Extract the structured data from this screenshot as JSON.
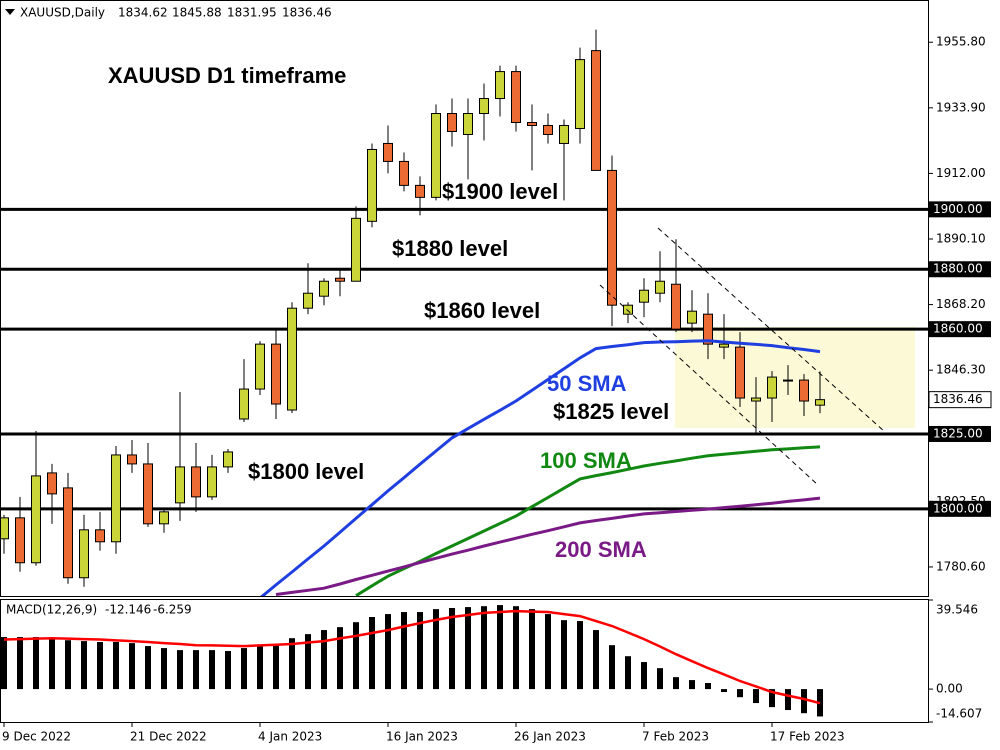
{
  "chart_data": [
    {
      "type": "candlestick",
      "symbol": "XAUUSD,Daily",
      "title": "XAUUSD D1 timeframe",
      "categories": [
        "9 Dec 2022",
        null,
        null,
        null,
        null,
        null,
        null,
        null,
        "21 Dec 2022",
        null,
        null,
        null,
        null,
        null,
        null,
        null,
        "4 Jan 2023",
        null,
        null,
        null,
        null,
        null,
        null,
        null,
        "16 Jan 2023",
        null,
        null,
        null,
        null,
        null,
        null,
        null,
        "26 Jan 2023",
        null,
        null,
        null,
        null,
        null,
        null,
        null,
        "7 Feb 2023",
        null,
        null,
        null,
        null,
        null,
        null,
        null,
        "17 Feb 2023",
        null,
        null,
        null
      ],
      "open": [
        1790,
        1797,
        1782,
        1812,
        1807,
        1777,
        1793,
        1789,
        1818,
        1815,
        1795,
        1802,
        1814,
        1804,
        1814,
        1830,
        1840,
        1855,
        1833,
        1867,
        1871,
        1877,
        1876,
        1896,
        1922,
        1916,
        1908,
        1904,
        1932,
        1925,
        1932,
        1937,
        1946,
        1929,
        1928,
        1922,
        1927,
        1953,
        1913,
        1865,
        1869,
        1872,
        1875,
        1862,
        1865,
        1854,
        1854,
        1836,
        1837,
        1843,
        1843,
        1834.62
      ],
      "high": [
        1798,
        1804,
        1826,
        1815,
        1812,
        1798,
        1799,
        1821,
        1823,
        1822,
        1800,
        1839,
        1822,
        1818,
        1820,
        1850,
        1856,
        1860,
        1869,
        1882,
        1877,
        1880,
        1901,
        1922,
        1928,
        1919,
        1911,
        1935,
        1937,
        1937,
        1942,
        1948,
        1948,
        1935,
        1932,
        1930,
        1954,
        1960,
        1918,
        1869,
        1877,
        1886,
        1890,
        1873,
        1872,
        1865,
        1859,
        1844,
        1846,
        1848,
        1845,
        1845.88
      ],
      "low": [
        1785,
        1779,
        1781,
        1795,
        1775,
        1774,
        1786,
        1785,
        1812,
        1794,
        1792,
        1796,
        1799,
        1803,
        1812,
        1829,
        1838,
        1830,
        1832,
        1865,
        1868,
        1871,
        1876,
        1894,
        1912,
        1906,
        1898,
        1903,
        1921,
        1910,
        1923,
        1931,
        1926,
        1913,
        1922,
        1903,
        1922,
        1913,
        1861,
        1862,
        1864,
        1869,
        1859,
        1859,
        1850,
        1850,
        1834,
        1825,
        1829,
        1838,
        1831,
        1831.95
      ],
      "close": [
        1797,
        1782,
        1811,
        1805,
        1777,
        1793,
        1789,
        1818,
        1815,
        1795,
        1799,
        1814,
        1804,
        1814,
        1819,
        1840,
        1855,
        1835,
        1867,
        1872,
        1876,
        1876,
        1897,
        1920,
        1916,
        1908,
        1904,
        1932,
        1926,
        1932,
        1937,
        1946,
        1929,
        1928,
        1925,
        1928,
        1950,
        1913,
        1868,
        1868,
        1873,
        1876,
        1860,
        1866,
        1855,
        1855,
        1837,
        1837,
        1844,
        1843,
        1836,
        1836.46
      ],
      "up_color": "#cad53a",
      "down_color": "#ec6b35",
      "lines": [
        {
          "name": "50 SMA",
          "color": "#1f3fe0",
          "values": [
            null,
            null,
            null,
            null,
            null,
            null,
            null,
            null,
            null,
            null,
            null,
            null,
            null,
            null,
            null,
            null,
            1770.2,
            1774.6,
            1778.9,
            1783.3,
            1787.6,
            1792.2,
            1796.8,
            1801.4,
            1806.0,
            1810.4,
            1814.9,
            1819.3,
            1823.7,
            1826.8,
            1829.9,
            1832.9,
            1836.0,
            1839.6,
            1843.2,
            1846.8,
            1850.4,
            1853.5,
            1854.2,
            1854.8,
            1855.5,
            1855.7,
            1855.8,
            1856.0,
            1856.1,
            1855.7,
            1855.3,
            1854.9,
            1854.5,
            1853.8,
            1853.2,
            1852.5
          ]
        },
        {
          "name": "100 SMA",
          "color": "#118811",
          "values": [
            null,
            null,
            null,
            null,
            null,
            null,
            null,
            null,
            null,
            null,
            null,
            null,
            null,
            null,
            null,
            null,
            null,
            null,
            null,
            null,
            null,
            null,
            1771.0,
            1774.3,
            1777.5,
            1780.0,
            1782.5,
            1785.1,
            1787.6,
            1790.1,
            1792.6,
            1795.1,
            1797.6,
            1800.7,
            1803.8,
            1806.9,
            1810.0,
            1811.1,
            1812.1,
            1813.2,
            1814.3,
            1815.2,
            1816.0,
            1816.9,
            1817.7,
            1818.2,
            1818.7,
            1819.2,
            1819.7,
            1820.0,
            1820.4,
            1820.7
          ]
        },
        {
          "name": "200 SMA",
          "color": "#7a1a86",
          "values": [
            null,
            null,
            null,
            null,
            null,
            null,
            null,
            null,
            null,
            null,
            null,
            null,
            null,
            null,
            null,
            null,
            null,
            1771.4,
            1772.1,
            1772.8,
            1773.5,
            1774.9,
            1776.4,
            1777.8,
            1779.2,
            1780.6,
            1782.1,
            1783.5,
            1784.9,
            1786.2,
            1787.6,
            1788.9,
            1790.2,
            1791.5,
            1792.7,
            1794.0,
            1795.3,
            1796.1,
            1796.8,
            1797.6,
            1798.3,
            1798.7,
            1799.1,
            1799.5,
            1799.9,
            1800.4,
            1800.9,
            1801.4,
            1801.9,
            1802.5,
            1803.0,
            1803.6
          ]
        }
      ],
      "levels": [
        {
          "value": 1900,
          "label": "1900.00",
          "annotation": "$1900 level"
        },
        {
          "value": 1880,
          "label": "1880.00",
          "annotation": "$1880 level"
        },
        {
          "value": 1860,
          "label": "1860.00",
          "annotation": "$1860 level"
        },
        {
          "value": 1825,
          "label": "1825.00",
          "annotation": "$1825 level"
        },
        {
          "value": 1800,
          "label": "1800.00",
          "annotation": "$1800 level"
        }
      ],
      "ylim": [
        1770.9,
        1969.9
      ],
      "yticks": [
        {
          "value": 1955.8,
          "label": "1955.80"
        },
        {
          "value": 1933.9,
          "label": "1933.90"
        },
        {
          "value": 1912,
          "label": "1912.00"
        },
        {
          "value": 1890.1,
          "label": "1890.10"
        },
        {
          "value": 1868.2,
          "label": "1868.20"
        },
        {
          "value": 1846.3,
          "label": "1846.30"
        },
        {
          "value": 1802.5,
          "label": "1802.50"
        },
        {
          "value": 1780.6,
          "label": "1780.60"
        }
      ]
    },
    {
      "type": "macd",
      "title": "MACD(12,26,9)",
      "series": [
        {
          "type": "bar",
          "color": "#000000",
          "values": [
            23.1,
            23.1,
            23.1,
            22.6,
            21.7,
            21.3,
            20.9,
            20.9,
            20.4,
            19.1,
            18.2,
            17.3,
            17.3,
            17.3,
            16.9,
            18.2,
            19.5,
            20.0,
            22.6,
            24.4,
            26.2,
            27.5,
            29.7,
            32.0,
            33.3,
            34.2,
            34.2,
            35.5,
            36.0,
            36.4,
            36.8,
            37.3,
            36.8,
            35.5,
            33.3,
            30.6,
            30.2,
            26.2,
            19.5,
            14.6,
            12.0,
            9.3,
            5.3,
            4.0,
            2.7,
            -1.3,
            -3.6,
            -6.2,
            -8.0,
            -9.3,
            -10.7,
            -12.146
          ]
        },
        {
          "type": "line",
          "color": "#ff0000",
          "values": [
            22.0,
            22.2,
            22.4,
            22.6,
            22.4,
            22.2,
            22.0,
            21.6,
            21.3,
            20.9,
            20.4,
            20.0,
            19.5,
            19.4,
            19.2,
            19.1,
            19.4,
            19.7,
            20.0,
            20.7,
            21.3,
            22.5,
            23.6,
            24.9,
            26.2,
            27.8,
            29.3,
            30.7,
            32.0,
            32.9,
            33.8,
            34.2,
            34.6,
            34.4,
            34.2,
            33.3,
            32.4,
            30.2,
            28.0,
            25.1,
            22.2,
            18.9,
            15.5,
            12.4,
            9.3,
            6.5,
            3.6,
            1.2,
            -1.3,
            -2.9,
            -4.4,
            -6.259
          ]
        }
      ],
      "ylim": [
        -14.607,
        39.546
      ],
      "yticks": [
        39.546,
        {
          "value": 0,
          "label": "0.00"
        },
        -14.607
      ]
    }
  ]
}
